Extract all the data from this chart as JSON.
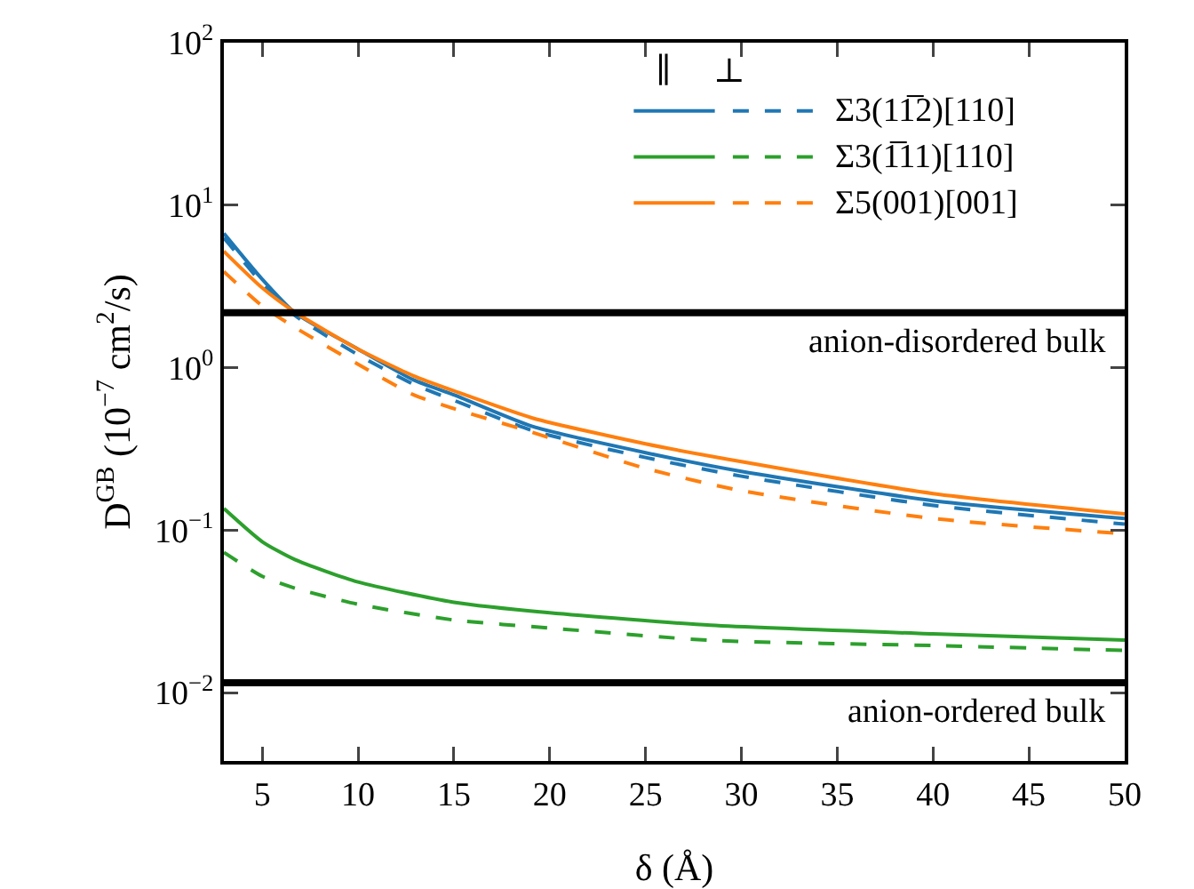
{
  "chart_data": {
    "type": "line",
    "xlabel": "δ (Å)",
    "ylabel": "D$^{GB}$ (10$^{−7}$ cm$^{2}$/s)",
    "legend_title": "∥     ⊥",
    "log": "y",
    "grid": false,
    "legend": "top right",
    "xlim": [
      3,
      50
    ],
    "xticks": [
      5,
      10,
      15,
      20,
      25,
      30,
      35,
      40,
      45,
      50
    ],
    "ylim": [
      0.0038,
      100
    ],
    "yticks": [
      {
        "value": 0.01,
        "label": "10$^{−2}$"
      },
      {
        "value": 0.1,
        "label": "10$^{−1}$"
      },
      {
        "value": 1,
        "label": "10$^{0}$"
      },
      {
        "value": 10,
        "label": "10$^{1}$"
      },
      {
        "value": 100,
        "label": "10$^{2}$"
      }
    ],
    "series": [
      {
        "name": "Σ3(11̅2)[110]",
        "color": "#1f77b4",
        "line_style": "solid",
        "x": [
          3,
          5,
          6.7,
          10,
          12.9,
          15,
          19.1,
          25,
          30,
          40,
          50
        ],
        "values": [
          6.7,
          3.5,
          2.18,
          1.3,
          0.84,
          0.68,
          0.435,
          0.3,
          0.23,
          0.152,
          0.118
        ]
      },
      {
        "color": "#1f77b4",
        "line_style": "dashed",
        "x": [
          3,
          5,
          6.7,
          10,
          12.9,
          15,
          19.1,
          25,
          30,
          40,
          50
        ],
        "values": [
          6.3,
          3.3,
          2.1,
          1.2,
          0.79,
          0.63,
          0.41,
          0.28,
          0.215,
          0.142,
          0.109
        ]
      },
      {
        "name": "Σ3(1̅11)[110]",
        "color": "#2ca02c",
        "line_style": "solid",
        "x": [
          3,
          5,
          6.7,
          10,
          15,
          20,
          28.4,
          40,
          50
        ],
        "values": [
          0.136,
          0.085,
          0.066,
          0.048,
          0.036,
          0.031,
          0.026,
          0.023,
          0.0211
        ]
      },
      {
        "color": "#2ca02c",
        "line_style": "dashed",
        "x": [
          3,
          5,
          6.7,
          10,
          15,
          20,
          28.4,
          40,
          50
        ],
        "values": [
          0.073,
          0.052,
          0.044,
          0.035,
          0.028,
          0.025,
          0.021,
          0.0195,
          0.0182
        ]
      },
      {
        "name": "Σ5(001)[001]",
        "color": "#ff7f0e",
        "line_style": "solid",
        "x": [
          3,
          5,
          6.7,
          10,
          12.9,
          15,
          19.1,
          25,
          30,
          40,
          50
        ],
        "values": [
          5.2,
          3.1,
          2.2,
          1.3,
          0.89,
          0.72,
          0.49,
          0.34,
          0.264,
          0.168,
          0.126
        ]
      },
      {
        "color": "#ff7f0e",
        "line_style": "dashed",
        "x": [
          3,
          5,
          6.7,
          10,
          12.9,
          15,
          19.1,
          25,
          30,
          40,
          50
        ],
        "values": [
          3.9,
          2.4,
          1.77,
          1.05,
          0.68,
          0.56,
          0.4,
          0.24,
          0.175,
          0.118,
          0.095
        ]
      }
    ],
    "ref_lines": [
      {
        "axis": "y",
        "value": 2.18,
        "label": "anion-disordered bulk",
        "color": "#000000"
      },
      {
        "axis": "y",
        "value": 0.0115,
        "label": "anion-ordered bulk",
        "color": "#000000"
      }
    ]
  }
}
